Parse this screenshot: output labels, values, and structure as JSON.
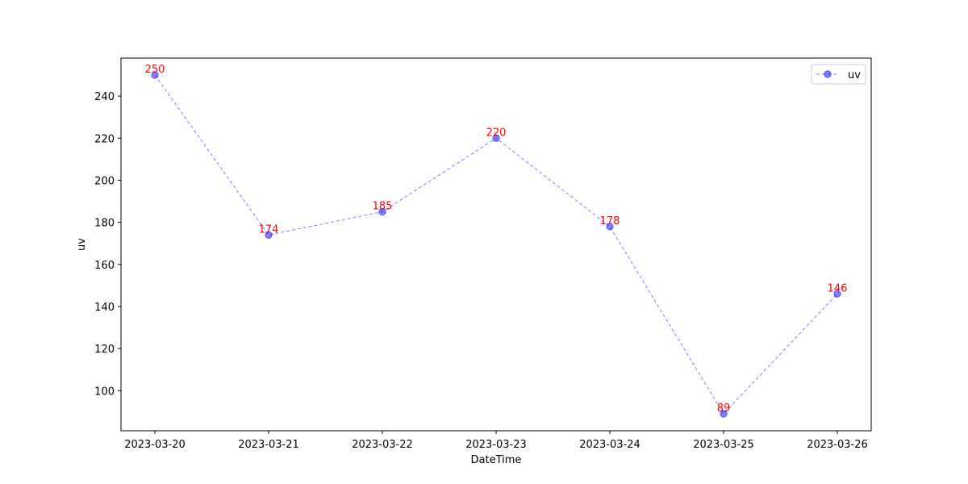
{
  "chart_data": {
    "type": "line",
    "title": "",
    "xlabel": "DateTime",
    "ylabel": "uv",
    "x": [
      "2023-03-20",
      "2023-03-21",
      "2023-03-22",
      "2023-03-23",
      "2023-03-24",
      "2023-03-25",
      "2023-03-26"
    ],
    "series": [
      {
        "name": "uv",
        "values": [
          250,
          174,
          185,
          220,
          178,
          89,
          146
        ],
        "color": "#0000ff",
        "line_style": "dashed",
        "marker": "circle"
      }
    ],
    "data_labels": [
      "250",
      "174",
      "185",
      "220",
      "178",
      "89",
      "146"
    ],
    "data_label_color": "#ff0000",
    "yticks": [
      100,
      120,
      140,
      160,
      180,
      200,
      220,
      240
    ],
    "ylim": [
      80.95,
      258.05
    ],
    "grid": false,
    "legend_position": "top-right"
  }
}
